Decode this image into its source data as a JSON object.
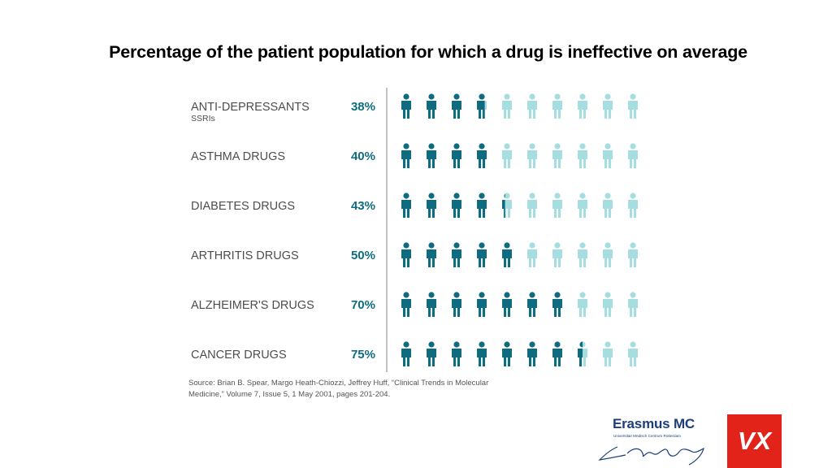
{
  "slide": {
    "title": "Percentage of the patient population for which a drug is ineffective on average"
  },
  "chart_data": {
    "type": "pictogram",
    "icons_per_row": 10,
    "categories": [
      "ANTI-DEPRESSANTS",
      "ASTHMA DRUGS",
      "DIABETES DRUGS",
      "ARTHRITIS DRUGS",
      "ALZHEIMER'S DRUGS",
      "CANCER DRUGS"
    ],
    "category_sublabels": [
      "SSRIs",
      "",
      "",
      "",
      "",
      ""
    ],
    "values": [
      38,
      40,
      43,
      50,
      70,
      75
    ],
    "value_labels": [
      "38%",
      "40%",
      "43%",
      "50%",
      "70%",
      "75%"
    ],
    "unit": "%",
    "colors": {
      "filled": "#0f6b80",
      "empty": "#a6dde0",
      "axis": "#888888",
      "label": "#4d4d4d"
    },
    "source": "Source: Brian B. Spear, Margo Heath-Chiozzi, Jeffrey Huff, “Clinical Trends in Molecular Medicine,” Volume 7, Issue 5, 1 May 2001, pages 201-204."
  },
  "logos": {
    "erasmus_name": "Erasmus MC",
    "erasmus_sub": "Universitair Medisch Centrum Rotterdam",
    "vx_text": "VX"
  }
}
